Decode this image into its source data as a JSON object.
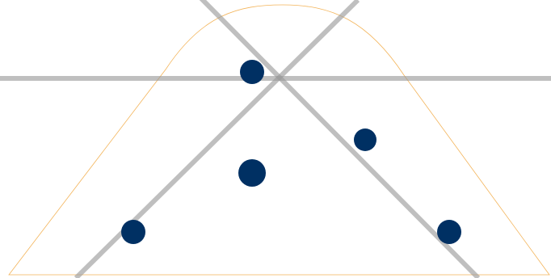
{
  "diagram": {
    "shape": "rounded-trapezoid-outline",
    "guide_line_count": 3,
    "point_count": 5
  },
  "colors": {
    "background": "#ffffff",
    "outline": "#f3b45a",
    "guide_lines": "#999999",
    "points": "#003063"
  }
}
